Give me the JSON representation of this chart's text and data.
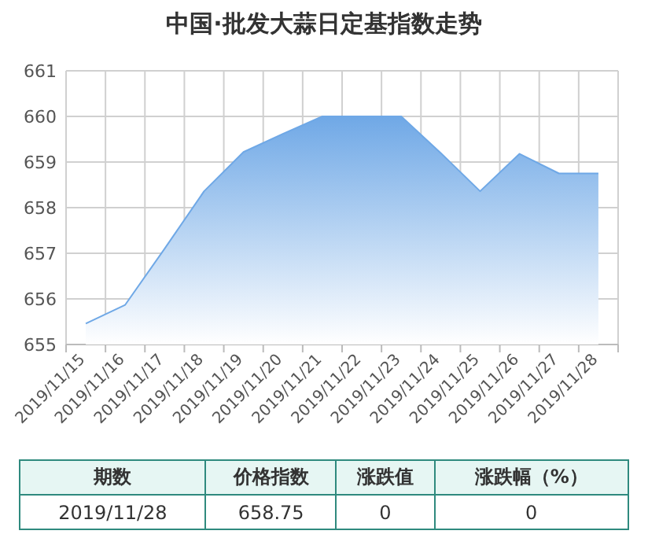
{
  "chart_data": {
    "type": "area",
    "title": "中国·批发大蒜日定基指数走势",
    "categories": [
      "2019/11/15",
      "2019/11/16",
      "2019/11/17",
      "2019/11/18",
      "2019/11/19",
      "2019/11/20",
      "2019/11/21",
      "2019/11/22",
      "2019/11/23",
      "2019/11/24",
      "2019/11/25",
      "2019/11/26",
      "2019/11/27",
      "2019/11/28"
    ],
    "values": [
      655.46,
      655.87,
      657.1,
      658.36,
      659.22,
      659.62,
      660,
      660,
      660,
      659.2,
      658.36,
      659.18,
      658.75,
      658.75
    ],
    "color": "#6fa8e6",
    "ylim": [
      655,
      661
    ],
    "yticks": [
      655,
      656,
      657,
      658,
      659,
      660,
      661
    ],
    "grid": true,
    "annotations": [
      "期数",
      "价格指数",
      "涨跌值",
      "涨跌幅（%）",
      "2019/11/28",
      "658.75",
      "0",
      "0"
    ]
  }
}
